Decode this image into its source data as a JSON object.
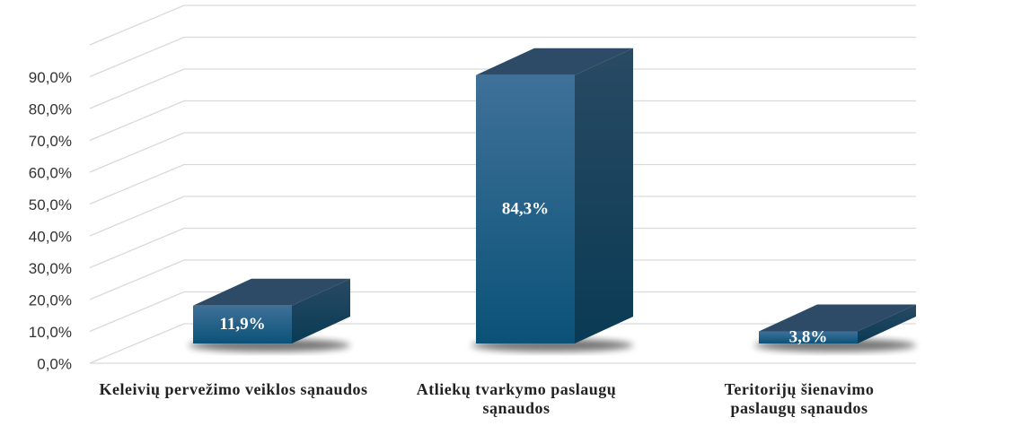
{
  "chart_data": {
    "type": "bar3d",
    "categories": [
      "Keleivių pervežimo veiklos sąnaudos",
      "Atliekų tvarkymo paslaugų sąnaudos",
      "Teritorijų šienavimo paslaugų sąnaudos"
    ],
    "values": [
      11.9,
      84.3,
      3.8
    ],
    "value_labels": [
      "11,9%",
      "84,3%",
      "3,8%"
    ],
    "color": "#1b5e86",
    "ylim": [
      0,
      100
    ],
    "yticks": [
      {
        "value": 0,
        "label": "0,0%"
      },
      {
        "value": 10,
        "label": "10,0%"
      },
      {
        "value": 20,
        "label": "20,0%"
      },
      {
        "value": 30,
        "label": "30,0%"
      },
      {
        "value": 40,
        "label": "40,0%"
      },
      {
        "value": 50,
        "label": "50,0%"
      },
      {
        "value": 60,
        "label": "60,0%"
      },
      {
        "value": 70,
        "label": "70,0%"
      },
      {
        "value": 80,
        "label": "80,0%"
      },
      {
        "value": 90,
        "label": "90,0%"
      }
    ],
    "grid": true
  }
}
